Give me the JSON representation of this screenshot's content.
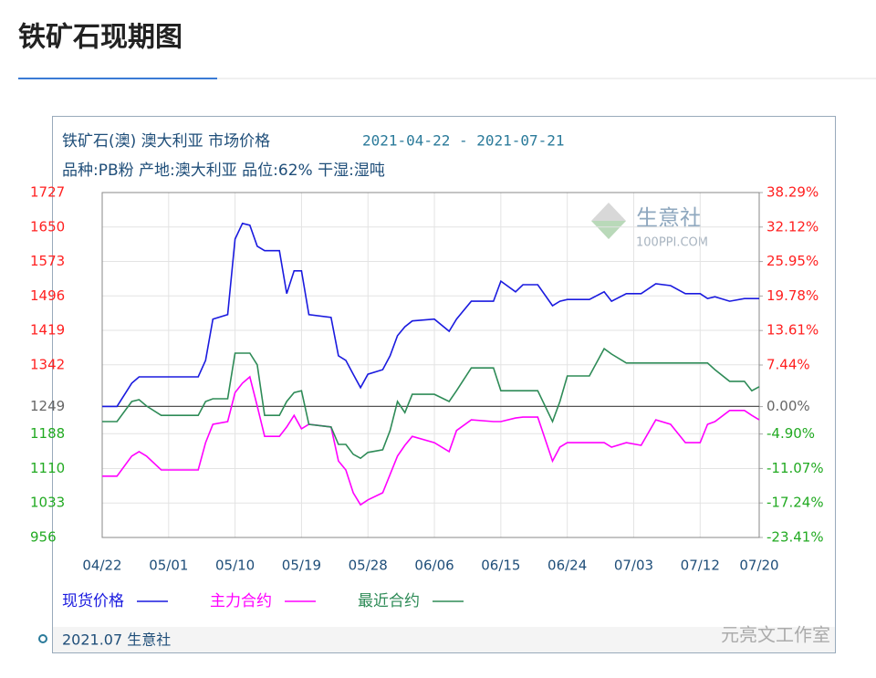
{
  "page_title": "铁矿石现期图",
  "credit": "元亮文工作室",
  "chart_data": {
    "type": "line",
    "title": "铁矿石(澳) 澳大利亚 市场价格",
    "date_range": "2021-04-22 - 2021-07-21",
    "subtitle": "品种:PB粉 产地:澳大利亚 品位:62% 干湿:湿吨",
    "footer": "2021.07 生意社",
    "watermark": {
      "name": "生意社",
      "site": "100PPI.COM"
    },
    "x": [
      "04/22",
      "04/24",
      "04/26",
      "04/27",
      "04/28",
      "04/30",
      "05/05",
      "05/06",
      "05/07",
      "05/09",
      "05/10",
      "05/11",
      "05/12",
      "05/13",
      "05/14",
      "05/16",
      "05/17",
      "05/18",
      "05/19",
      "05/20",
      "05/23",
      "05/24",
      "05/25",
      "05/26",
      "05/27",
      "05/28",
      "05/30",
      "05/31",
      "06/01",
      "06/02",
      "06/03",
      "06/06",
      "06/08",
      "06/09",
      "06/11",
      "06/14",
      "06/15",
      "06/17",
      "06/18",
      "06/20",
      "06/22",
      "06/23",
      "06/24",
      "06/27",
      "06/29",
      "06/30",
      "07/02",
      "07/04",
      "07/06",
      "07/08",
      "07/10",
      "07/12",
      "07/13",
      "07/14",
      "07/16",
      "07/18",
      "07/19",
      "07/20"
    ],
    "xlim": [
      "04/22",
      "07/20"
    ],
    "xticks": [
      "04/22",
      "05/01",
      "05/10",
      "05/19",
      "05/28",
      "06/06",
      "06/15",
      "06/24",
      "07/03",
      "07/12",
      "07/20"
    ],
    "ylim": [
      956,
      1727
    ],
    "yticks": [
      956,
      1033,
      1110,
      1188,
      1249,
      1342,
      1419,
      1496,
      1573,
      1650,
      1727
    ],
    "y2lim": [
      -23.41,
      38.29
    ],
    "y2ticks": [
      {
        "value": -23.41,
        "label": "-23.41%"
      },
      {
        "value": -17.24,
        "label": "-17.24%"
      },
      {
        "value": -11.07,
        "label": "-11.07%"
      },
      {
        "value": -4.9,
        "label": "-4.90%"
      },
      {
        "value": 0,
        "label": "0.00%"
      },
      {
        "value": 7.44,
        "label": "7.44%"
      },
      {
        "value": 13.61,
        "label": "13.61%"
      },
      {
        "value": 19.78,
        "label": "19.78%"
      },
      {
        "value": 25.95,
        "label": "25.95%"
      },
      {
        "value": 32.12,
        "label": "32.12%"
      },
      {
        "value": 38.29,
        "label": "38.29%"
      }
    ],
    "baseline": 1249,
    "above_color": "#ff2020",
    "below_color": "#22aa22",
    "grid": true,
    "legend": "bottom",
    "series": [
      {
        "name": "现货价格",
        "color": "#1a1adf",
        "values": [
          1249,
          1249,
          1301,
          1315,
          1315,
          1315,
          1315,
          1352,
          1444,
          1454,
          1623,
          1658,
          1654,
          1607,
          1597,
          1597,
          1501,
          1552,
          1552,
          1454,
          1448,
          1362,
          1352,
          1321,
          1291,
          1321,
          1331,
          1362,
          1407,
          1427,
          1440,
          1444,
          1417,
          1444,
          1484,
          1484,
          1529,
          1505,
          1521,
          1521,
          1474,
          1484,
          1488,
          1488,
          1505,
          1484,
          1501,
          1501,
          1523,
          1519,
          1501,
          1501,
          1490,
          1494,
          1484,
          1490,
          1490,
          1490
        ]
      },
      {
        "name": "主力合约",
        "color": "#ff00ff",
        "values": [
          1093,
          1093,
          1138,
          1148,
          1138,
          1107,
          1107,
          1168,
          1209,
          1215,
          1280,
          1301,
          1315,
          1250,
          1182,
          1182,
          1203,
          1229,
          1199,
          1209,
          1203,
          1127,
          1107,
          1056,
          1029,
          1040,
          1056,
          1097,
          1138,
          1162,
          1182,
          1168,
          1148,
          1195,
          1219,
          1215,
          1215,
          1223,
          1225,
          1225,
          1127,
          1158,
          1168,
          1168,
          1168,
          1158,
          1168,
          1162,
          1219,
          1209,
          1168,
          1168,
          1209,
          1215,
          1240,
          1240,
          1229,
          1219
        ]
      },
      {
        "name": "最近合约",
        "color": "#2e8b57",
        "values": [
          1215,
          1215,
          1260,
          1264,
          1250,
          1229,
          1229,
          1260,
          1266,
          1266,
          1368,
          1368,
          1368,
          1342,
          1229,
          1229,
          1260,
          1280,
          1284,
          1209,
          1203,
          1164,
          1164,
          1142,
          1133,
          1146,
          1152,
          1195,
          1260,
          1235,
          1276,
          1276,
          1260,
          1284,
          1335,
          1335,
          1284,
          1284,
          1284,
          1284,
          1215,
          1260,
          1317,
          1317,
          1378,
          1366,
          1346,
          1346,
          1346,
          1346,
          1346,
          1346,
          1346,
          1331,
          1305,
          1305,
          1284,
          1293
        ]
      }
    ]
  }
}
